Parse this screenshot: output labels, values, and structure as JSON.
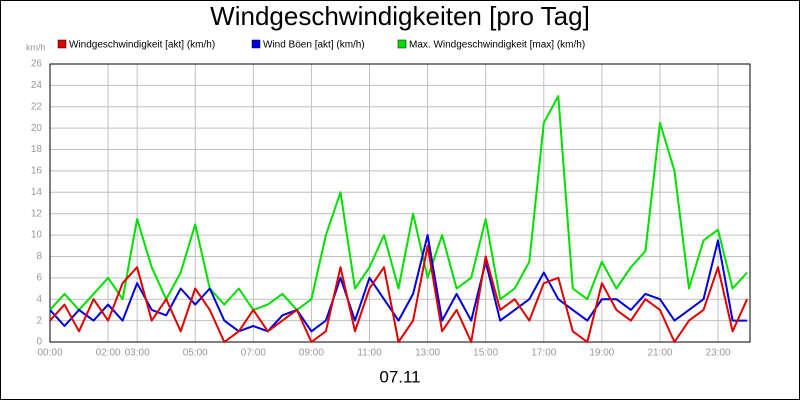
{
  "chart_data": {
    "type": "line",
    "title": "Windgeschwindigkeiten [pro Tag]",
    "ylabel": "km/h",
    "xlabel": "07.11",
    "x": [
      0,
      0.5,
      1,
      1.5,
      2,
      2.5,
      3,
      3.5,
      4,
      4.5,
      5,
      5.5,
      6,
      6.5,
      7,
      7.5,
      8,
      8.5,
      9,
      9.5,
      10,
      10.5,
      11,
      11.5,
      12,
      12.5,
      13,
      13.5,
      14,
      14.5,
      15,
      15.5,
      16,
      16.5,
      17,
      17.5,
      18,
      18.5,
      19,
      19.5,
      20,
      20.5,
      21,
      21.5,
      22,
      22.5,
      23,
      23.5,
      24
    ],
    "series": [
      {
        "name": "Windgeschwindigkeit [akt] (km/h)",
        "color": "#e00000",
        "values": [
          2,
          3.5,
          1,
          4,
          2,
          5.5,
          7,
          2,
          4,
          1,
          5,
          3,
          0,
          1,
          3,
          1,
          2,
          3,
          0,
          1,
          7,
          1,
          5,
          7,
          0,
          2,
          9,
          1,
          3,
          0,
          8,
          3,
          4,
          2,
          5.5,
          6,
          1,
          0,
          5.5,
          3,
          2,
          4,
          3,
          0,
          2,
          3,
          7,
          1,
          4
        ]
      },
      {
        "name": "Wind Böen [akt] (km/h)",
        "color": "#0000e0",
        "values": [
          3,
          1.5,
          3,
          2,
          3.5,
          2,
          5.5,
          3,
          2.5,
          5,
          3.5,
          5,
          2,
          1,
          1.5,
          1,
          2.5,
          3,
          1,
          2,
          6,
          2,
          6,
          4,
          2,
          4.5,
          10,
          2,
          4.5,
          2,
          7.5,
          2,
          3,
          4,
          6.5,
          4,
          3,
          2,
          4,
          4,
          3,
          4.5,
          4,
          2,
          3,
          4,
          9.5,
          2,
          2
        ]
      },
      {
        "name": "Max. Windgeschwindigkeit [max] (km/h)",
        "color": "#00e000",
        "values": [
          3,
          4.5,
          3,
          4.5,
          6,
          4,
          11.5,
          7,
          4,
          6.5,
          11,
          5,
          3.5,
          5,
          3,
          3.5,
          4.5,
          3,
          4,
          10,
          14,
          5,
          7,
          10,
          5,
          12,
          6,
          10,
          5,
          6,
          11.5,
          4,
          5,
          7.5,
          20.5,
          23,
          5,
          4,
          7.5,
          5,
          7,
          8.5,
          20.5,
          16,
          5,
          9.5,
          10.5,
          5,
          6.5
        ]
      }
    ],
    "xlim": [
      0,
      24.1
    ],
    "xticks": [
      {
        "value": 0,
        "label": "00:00"
      },
      {
        "value": 2,
        "label": "02:00"
      },
      {
        "value": 3,
        "label": "03:00"
      },
      {
        "value": 5,
        "label": "05:00"
      },
      {
        "value": 7,
        "label": "07:00"
      },
      {
        "value": 9,
        "label": "09:00"
      },
      {
        "value": 11,
        "label": "11:00"
      },
      {
        "value": 13,
        "label": "13:00"
      },
      {
        "value": 15,
        "label": "15:00"
      },
      {
        "value": 17,
        "label": "17:00"
      },
      {
        "value": 19,
        "label": "19:00"
      },
      {
        "value": 21,
        "label": "21:00"
      },
      {
        "value": 23,
        "label": "23:00"
      }
    ],
    "ylim": [
      0,
      26
    ],
    "yticks": [
      0,
      2,
      4,
      6,
      8,
      10,
      12,
      14,
      16,
      18,
      20,
      22,
      24,
      26
    ],
    "grid": true
  }
}
